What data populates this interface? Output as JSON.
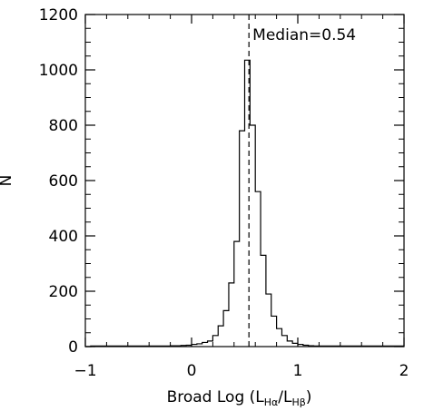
{
  "chart_data": {
    "type": "histogram",
    "xlabel": {
      "main": "Broad Log (L",
      "sub1": "Hα",
      "mid": "/L",
      "sub2": "Hβ",
      "end": ")"
    },
    "ylabel": "N",
    "xlim": [
      -1,
      2
    ],
    "ylim": [
      0,
      1200
    ],
    "xticks": [
      -1,
      0,
      1,
      2
    ],
    "xtick_labels": [
      "−1",
      "0",
      "1",
      "2"
    ],
    "yticks": [
      0,
      200,
      400,
      600,
      800,
      1000,
      1200
    ],
    "ytick_labels": [
      "0",
      "200",
      "400",
      "600",
      "800",
      "1000",
      "1200"
    ],
    "grid": false,
    "bin_width": 0.05,
    "bins": [
      {
        "x0": -1.0,
        "count": 0
      },
      {
        "x0": -0.95,
        "count": 2
      },
      {
        "x0": -0.9,
        "count": 2
      },
      {
        "x0": -0.85,
        "count": 2
      },
      {
        "x0": -0.8,
        "count": 2
      },
      {
        "x0": -0.75,
        "count": 2
      },
      {
        "x0": -0.7,
        "count": 2
      },
      {
        "x0": -0.65,
        "count": 2
      },
      {
        "x0": -0.6,
        "count": 2
      },
      {
        "x0": -0.55,
        "count": 2
      },
      {
        "x0": -0.5,
        "count": 2
      },
      {
        "x0": -0.45,
        "count": 2
      },
      {
        "x0": -0.4,
        "count": 2
      },
      {
        "x0": -0.35,
        "count": 2
      },
      {
        "x0": -0.3,
        "count": 2
      },
      {
        "x0": -0.25,
        "count": 2
      },
      {
        "x0": -0.2,
        "count": 3
      },
      {
        "x0": -0.15,
        "count": 3
      },
      {
        "x0": -0.1,
        "count": 4
      },
      {
        "x0": -0.05,
        "count": 5
      },
      {
        "x0": 0.0,
        "count": 8
      },
      {
        "x0": 0.05,
        "count": 10
      },
      {
        "x0": 0.1,
        "count": 15
      },
      {
        "x0": 0.15,
        "count": 20
      },
      {
        "x0": 0.2,
        "count": 40
      },
      {
        "x0": 0.25,
        "count": 75
      },
      {
        "x0": 0.3,
        "count": 130
      },
      {
        "x0": 0.35,
        "count": 230
      },
      {
        "x0": 0.4,
        "count": 380
      },
      {
        "x0": 0.45,
        "count": 780
      },
      {
        "x0": 0.5,
        "count": 1035
      },
      {
        "x0": 0.55,
        "count": 800
      },
      {
        "x0": 0.6,
        "count": 560
      },
      {
        "x0": 0.65,
        "count": 330
      },
      {
        "x0": 0.7,
        "count": 190
      },
      {
        "x0": 0.75,
        "count": 110
      },
      {
        "x0": 0.8,
        "count": 65
      },
      {
        "x0": 0.85,
        "count": 40
      },
      {
        "x0": 0.9,
        "count": 20
      },
      {
        "x0": 0.95,
        "count": 12
      },
      {
        "x0": 1.0,
        "count": 8
      },
      {
        "x0": 1.05,
        "count": 5
      },
      {
        "x0": 1.1,
        "count": 3
      },
      {
        "x0": 1.15,
        "count": 2
      },
      {
        "x0": 1.2,
        "count": 2
      },
      {
        "x0": 1.25,
        "count": 2
      },
      {
        "x0": 1.3,
        "count": 2
      },
      {
        "x0": 1.35,
        "count": 2
      },
      {
        "x0": 1.4,
        "count": 2
      },
      {
        "x0": 1.45,
        "count": 2
      },
      {
        "x0": 1.5,
        "count": 2
      },
      {
        "x0": 1.55,
        "count": 2
      },
      {
        "x0": 1.6,
        "count": 2
      },
      {
        "x0": 1.65,
        "count": 2
      },
      {
        "x0": 1.7,
        "count": 2
      },
      {
        "x0": 1.75,
        "count": 2
      },
      {
        "x0": 1.8,
        "count": 2
      },
      {
        "x0": 1.85,
        "count": 2
      },
      {
        "x0": 1.9,
        "count": 2
      },
      {
        "x0": 1.95,
        "count": 2
      }
    ],
    "median": {
      "value": 0.54,
      "label": "Median=0.54",
      "line_style": "dashed"
    }
  }
}
